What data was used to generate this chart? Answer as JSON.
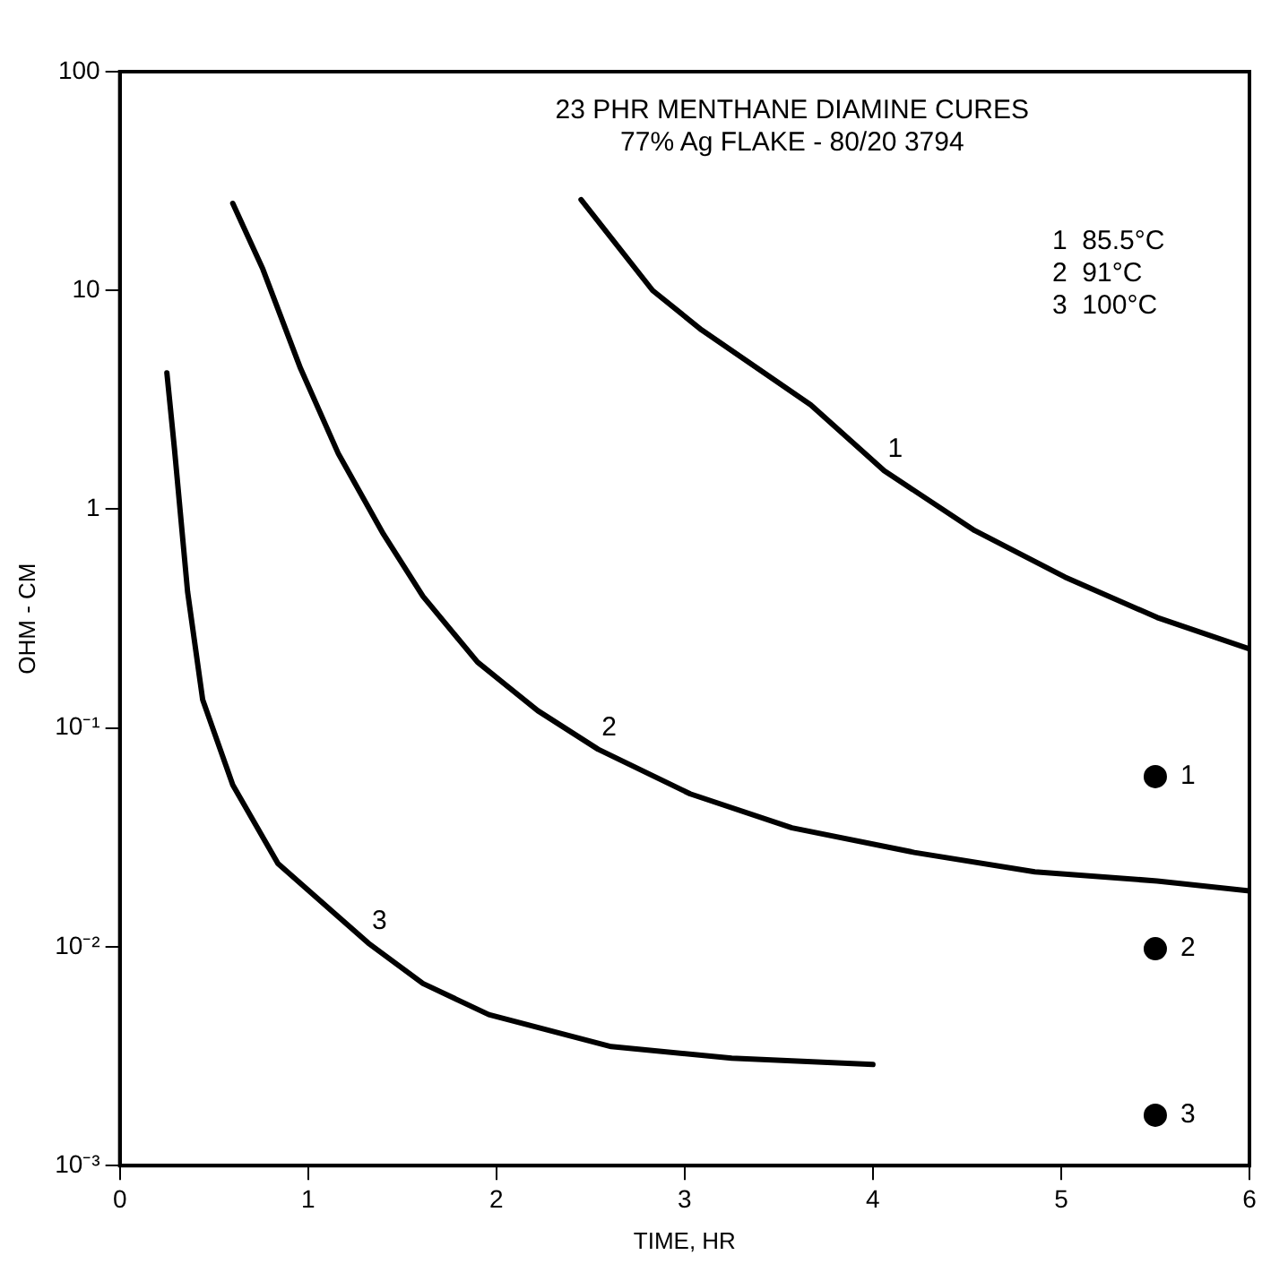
{
  "chart_data": {
    "type": "line",
    "title": "23 PHR MENTHANE DIAMINE CURES",
    "subtitle": "77% Ag FLAKE - 80/20 3794",
    "xlabel": "TIME, HR",
    "ylabel": "OHM - CM",
    "log": "y",
    "grid": false,
    "legend": false,
    "line_style": "solid",
    "marker": "none",
    "xlim": [
      0,
      6
    ],
    "xticks": [
      0,
      1,
      2,
      3,
      4,
      5,
      6
    ],
    "ylim": [
      0.001,
      100
    ],
    "yticks": [
      {
        "value": 0.001,
        "label": "10⁻³"
      },
      {
        "value": 0.01,
        "label": "10⁻²"
      },
      {
        "value": 0.1,
        "label": "10⁻¹"
      },
      1,
      10,
      100
    ],
    "series": [
      {
        "color": "#000000",
        "x": [
          2.45,
          2.83,
          3.09,
          3.67,
          4.06,
          4.54,
          5.02,
          5.51,
          6.0
        ],
        "values": [
          26,
          10,
          6.6,
          3.0,
          1.5,
          0.8,
          0.49,
          0.32,
          0.23
        ]
      },
      {
        "color": "#000000",
        "x": [
          0.6,
          0.76,
          0.96,
          1.16,
          1.4,
          1.61,
          1.9,
          2.22,
          2.54,
          3.03,
          3.57,
          4.22,
          4.86,
          5.51,
          6.0
        ],
        "values": [
          25,
          12.5,
          4.4,
          1.8,
          0.77,
          0.4,
          0.2,
          0.12,
          0.08,
          0.05,
          0.035,
          0.027,
          0.022,
          0.02,
          0.018
        ]
      },
      {
        "color": "#000000",
        "x": [
          0.25,
          0.29,
          0.36,
          0.44,
          0.6,
          0.84,
          1.32,
          1.61,
          1.96,
          2.61,
          3.25,
          4.0
        ],
        "values": [
          4.2,
          1.9,
          0.42,
          0.135,
          0.055,
          0.024,
          0.0104,
          0.0068,
          0.0049,
          0.0035,
          0.0031,
          0.0029
        ]
      },
      {
        "type": "scatter",
        "marker": "circle",
        "color": "#000000",
        "x": [
          5.5,
          5.5,
          5.5
        ],
        "values": [
          0.06,
          0.0098,
          0.0017
        ]
      }
    ],
    "annotations": [
      {
        "text": "1",
        "x": 4.06,
        "y": 1.5
      },
      {
        "text": "2",
        "x": 2.54,
        "y": 0.08
      },
      {
        "text": "3",
        "x": 1.32,
        "y": 0.0104
      },
      {
        "text": "1",
        "x": 5.5,
        "y": 0.06
      },
      {
        "text": "2",
        "x": 5.5,
        "y": 0.0098
      },
      {
        "text": "3",
        "x": 5.5,
        "y": 0.0017
      },
      "1  85.5°C",
      "2  91°C",
      "3  100°C"
    ]
  }
}
